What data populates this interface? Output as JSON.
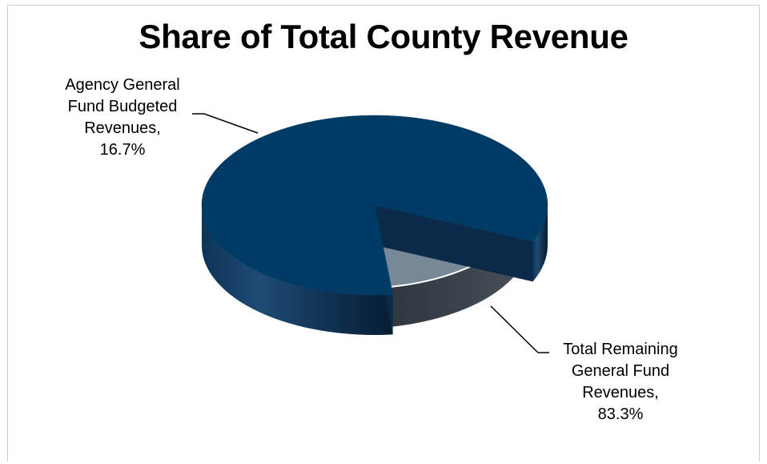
{
  "chart_data": {
    "type": "pie",
    "title": "Share of Total County Revenue",
    "slices": [
      {
        "label": "Total Remaining General Fund Revenues",
        "value": 83.3,
        "label_lines": [
          "Total Remaining",
          "General Fund",
          "Revenues,",
          "83.3%"
        ],
        "color": "#003b66"
      },
      {
        "label": "Agency General Fund Budgeted Revenues",
        "value": 16.7,
        "label_lines": [
          "Agency General",
          "Fund Budgeted",
          "Revenues,",
          "16.7%"
        ],
        "color": "#798896"
      }
    ],
    "style": "3d-exploded",
    "legend": "none"
  }
}
